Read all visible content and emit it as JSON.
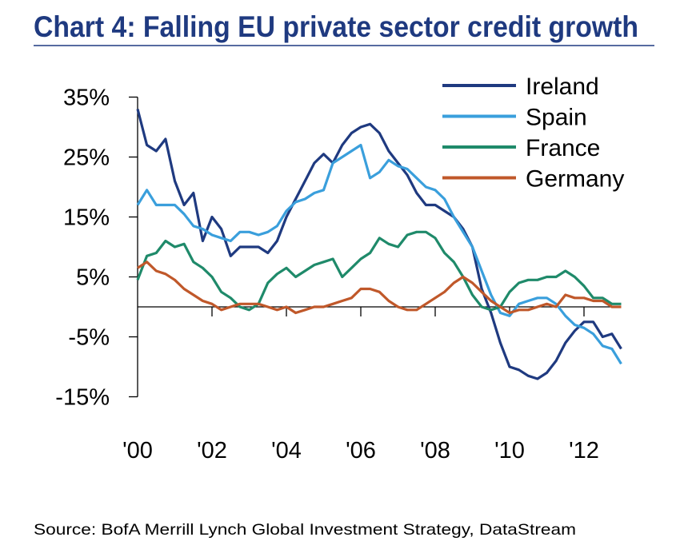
{
  "chart_data": {
    "type": "line",
    "title": "Chart 4: Falling EU private sector credit growth",
    "source": "Source: BofA Merrill Lynch Global Investment Strategy, DataStream",
    "xlabel": "",
    "ylabel": "",
    "xlim": [
      2000,
      2013
    ],
    "ylim": [
      -15,
      35
    ],
    "y_ticks": [
      35,
      25,
      15,
      5,
      -5,
      -15
    ],
    "y_tick_labels": [
      "35%",
      "25%",
      "15%",
      "5%",
      "-5%",
      "-15%"
    ],
    "x_ticks": [
      2000,
      2002,
      2004,
      2006,
      2008,
      2010,
      2012
    ],
    "x_tick_labels": [
      "'00",
      "'02",
      "'04",
      "'06",
      "'08",
      "'10",
      "'12"
    ],
    "grid": false,
    "legend_position": "top-right",
    "x": [
      2000,
      2000.25,
      2000.5,
      2000.75,
      2001,
      2001.25,
      2001.5,
      2001.75,
      2002,
      2002.25,
      2002.5,
      2002.75,
      2003,
      2003.25,
      2003.5,
      2003.75,
      2004,
      2004.25,
      2004.5,
      2004.75,
      2005,
      2005.25,
      2005.5,
      2005.75,
      2006,
      2006.25,
      2006.5,
      2006.75,
      2007,
      2007.25,
      2007.5,
      2007.75,
      2008,
      2008.25,
      2008.5,
      2008.75,
      2009,
      2009.25,
      2009.5,
      2009.75,
      2010,
      2010.25,
      2010.5,
      2010.75,
      2011,
      2011.25,
      2011.5,
      2011.75,
      2012,
      2012.25,
      2012.5,
      2012.75,
      2013
    ],
    "series": [
      {
        "name": "Ireland",
        "color": "#1f3a80",
        "values": [
          33,
          27,
          26,
          28,
          21,
          17,
          19,
          11,
          15,
          13,
          8.5,
          10,
          10,
          10,
          9,
          11,
          15,
          18,
          21,
          24,
          25.5,
          24,
          27,
          29,
          30,
          30.5,
          29,
          26,
          24,
          22,
          19,
          17,
          17,
          16,
          15,
          13,
          10,
          3,
          -1,
          -6,
          -10,
          -10.5,
          -11.5,
          -12,
          -11,
          -9,
          -6,
          -4,
          -2.5,
          -2.5,
          -5,
          -4.5,
          -7
        ]
      },
      {
        "name": "Spain",
        "color": "#3a9fdc",
        "values": [
          17,
          19.5,
          17,
          17,
          17,
          15.5,
          13.5,
          13,
          12,
          11.5,
          11,
          12.5,
          12.5,
          12,
          12.5,
          13.5,
          16,
          17.5,
          18,
          19,
          19.5,
          24,
          25,
          26,
          27,
          21.5,
          22.5,
          24.5,
          23.5,
          23,
          21.5,
          20,
          19.5,
          18,
          15,
          12.5,
          10,
          6,
          2,
          -1,
          -1.5,
          0.5,
          1,
          1.5,
          1.5,
          0.5,
          -1.5,
          -3,
          -3.5,
          -4.5,
          -6.5,
          -7,
          -9.5
        ]
      },
      {
        "name": "France",
        "color": "#1f8a6a",
        "values": [
          4.5,
          8.5,
          9,
          11,
          10,
          10.5,
          7.5,
          6.5,
          5,
          2.5,
          1.5,
          0,
          -0.5,
          0.5,
          4,
          5.5,
          6.5,
          5,
          6,
          7,
          7.5,
          8,
          5,
          6.5,
          8,
          9,
          11.5,
          10.5,
          10,
          12,
          12.5,
          12.5,
          11.5,
          9,
          7.5,
          5,
          2,
          0,
          -0.5,
          0,
          2.5,
          4,
          4.5,
          4.5,
          5,
          5,
          6,
          5,
          3.5,
          1.5,
          1.5,
          0.5,
          0.5
        ]
      },
      {
        "name": "Germany",
        "color": "#c0582a",
        "values": [
          6.5,
          7.5,
          6,
          5.5,
          4.5,
          3,
          2,
          1,
          0.5,
          -0.5,
          0,
          0.5,
          0.5,
          0.5,
          0,
          -0.5,
          0,
          -1,
          -0.5,
          0,
          0,
          0.5,
          1,
          1.5,
          3,
          3,
          2.5,
          1,
          0,
          -0.5,
          -0.5,
          0.5,
          1.5,
          2.5,
          4,
          5,
          4,
          2.5,
          1,
          0,
          -1,
          -0.5,
          -0.5,
          0,
          0.5,
          0,
          2,
          1.5,
          1.5,
          1,
          1,
          0,
          0
        ]
      }
    ],
    "colors": {
      "title": "#1f3a80",
      "axis": "#000000",
      "text": "#000000"
    }
  }
}
